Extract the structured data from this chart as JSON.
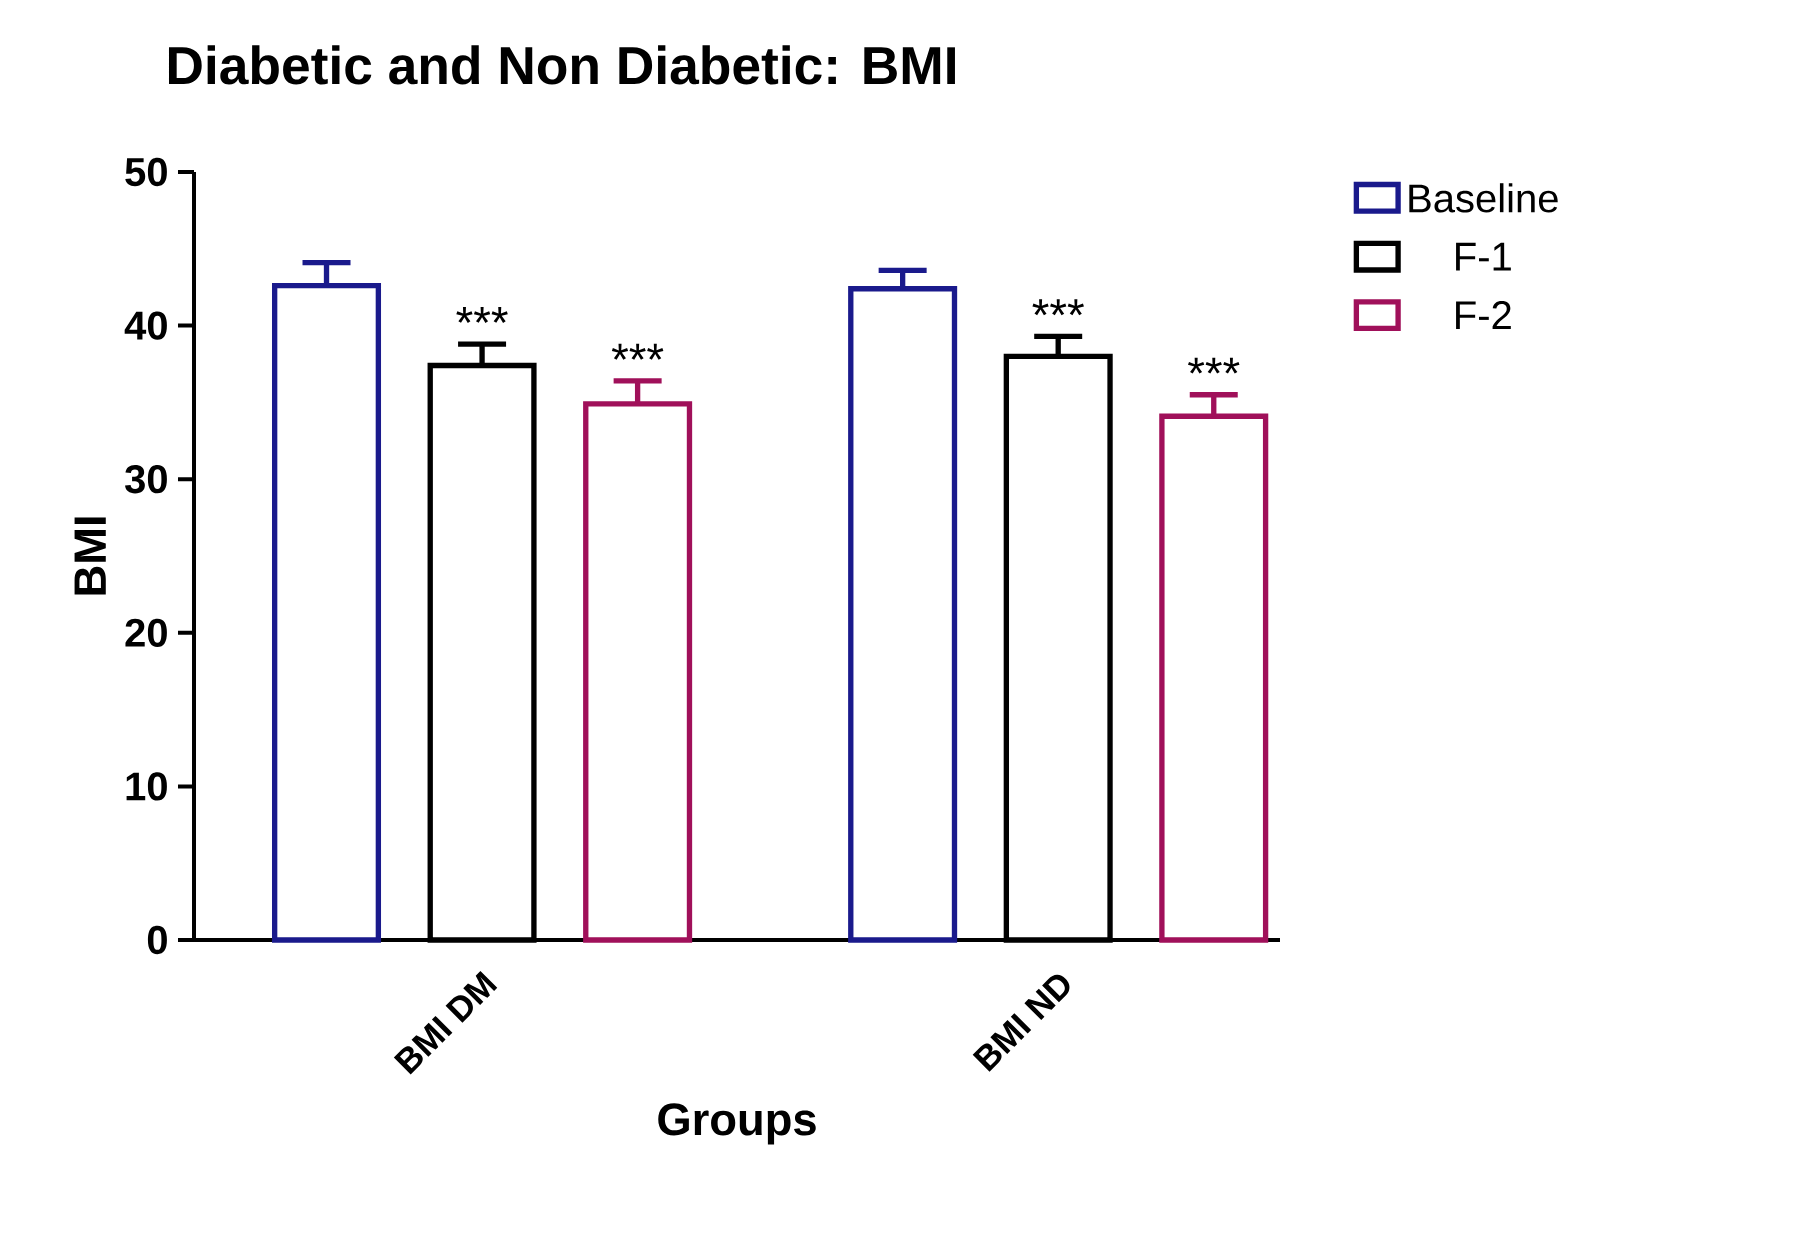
{
  "chart_data": {
    "type": "bar",
    "title": "Diabetic and Non Diabetic: BMI",
    "xlabel": "Groups",
    "ylabel": "BMI",
    "categories": [
      "BMI DM",
      "BMI ND"
    ],
    "series": [
      {
        "name": "Baseline",
        "color": "#1a1a8c",
        "values": [
          42.6,
          42.4
        ],
        "errors": [
          1.5,
          1.2
        ]
      },
      {
        "name": "F-1",
        "color": "#000000",
        "values": [
          37.4,
          38.0
        ],
        "errors": [
          1.4,
          1.3
        ],
        "value_labels": [
          "***",
          "***"
        ]
      },
      {
        "name": "F-2",
        "color": "#a0105a",
        "values": [
          34.9,
          34.1
        ],
        "errors": [
          1.5,
          1.4
        ],
        "value_labels": [
          "***",
          "***"
        ]
      }
    ],
    "ylim": [
      0,
      50
    ],
    "yticks": [
      0,
      10,
      20,
      30,
      40,
      50
    ],
    "grid": false,
    "legend": "top right"
  }
}
